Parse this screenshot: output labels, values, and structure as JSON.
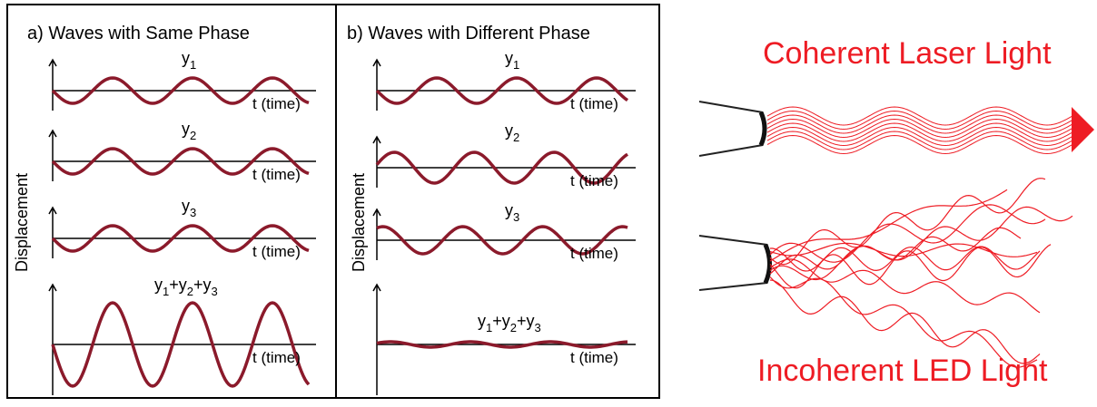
{
  "panel_a": {
    "title": "a) Waves with Same Phase",
    "y_axis_label": "Displacement",
    "rows": [
      {
        "label": [
          {
            "base": "y",
            "sub": "1"
          }
        ],
        "axis_label": "t (time)"
      },
      {
        "label": [
          {
            "base": "y",
            "sub": "2"
          }
        ],
        "axis_label": "t (time)"
      },
      {
        "label": [
          {
            "base": "y",
            "sub": "3"
          }
        ],
        "axis_label": "t (time)"
      },
      {
        "label": [
          {
            "base": "y",
            "sub": "1"
          },
          {
            "base": "+y",
            "sub": "2"
          },
          {
            "base": "+y",
            "sub": "3"
          }
        ],
        "axis_label": "t (time)"
      }
    ]
  },
  "panel_b": {
    "title": "b) Waves with Different Phase",
    "y_axis_label": "Displacement",
    "rows": [
      {
        "label": [
          {
            "base": "y",
            "sub": "1"
          }
        ],
        "axis_label": "t (time)"
      },
      {
        "label": [
          {
            "base": "y",
            "sub": "2"
          }
        ],
        "axis_label": "t (time)"
      },
      {
        "label": [
          {
            "base": "y",
            "sub": "3"
          }
        ],
        "axis_label": "t (time)"
      },
      {
        "label": [
          {
            "base": "y",
            "sub": "1"
          },
          {
            "base": "+y",
            "sub": "2"
          },
          {
            "base": "+y",
            "sub": "3"
          }
        ],
        "axis_label": "t (time)"
      }
    ]
  },
  "coherent_label": "Coherent Laser Light",
  "incoherent_label": "Incoherent LED Light"
}
